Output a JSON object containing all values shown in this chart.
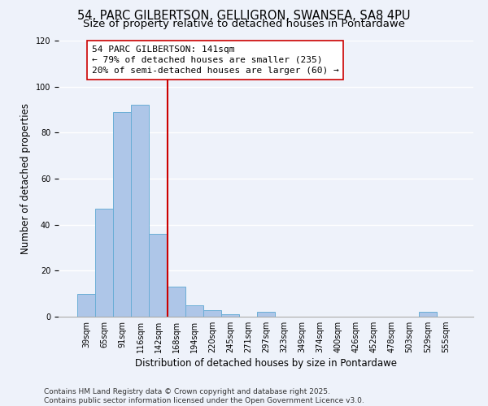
{
  "title": "54, PARC GILBERTSON, GELLIGRON, SWANSEA, SA8 4PU",
  "subtitle": "Size of property relative to detached houses in Pontardawe",
  "bar_labels": [
    "39sqm",
    "65sqm",
    "91sqm",
    "116sqm",
    "142sqm",
    "168sqm",
    "194sqm",
    "220sqm",
    "245sqm",
    "271sqm",
    "297sqm",
    "323sqm",
    "349sqm",
    "374sqm",
    "400sqm",
    "426sqm",
    "452sqm",
    "478sqm",
    "503sqm",
    "529sqm",
    "555sqm"
  ],
  "bar_values": [
    10,
    47,
    89,
    92,
    36,
    13,
    5,
    3,
    1,
    0,
    2,
    0,
    0,
    0,
    0,
    0,
    0,
    0,
    0,
    2,
    0
  ],
  "bar_color": "#aec6e8",
  "bar_edge_color": "#6aaed6",
  "vline_x": 4.5,
  "vline_color": "#cc0000",
  "annotation_lines": [
    "54 PARC GILBERTSON: 141sqm",
    "← 79% of detached houses are smaller (235)",
    "20% of semi-detached houses are larger (60) →"
  ],
  "ylabel": "Number of detached properties",
  "xlabel": "Distribution of detached houses by size in Pontardawe",
  "ylim": [
    0,
    120
  ],
  "yticks": [
    0,
    20,
    40,
    60,
    80,
    100,
    120
  ],
  "footnote1": "Contains HM Land Registry data © Crown copyright and database right 2025.",
  "footnote2": "Contains public sector information licensed under the Open Government Licence v3.0.",
  "background_color": "#eef2fa",
  "grid_color": "#ffffff",
  "title_fontsize": 10.5,
  "subtitle_fontsize": 9.5,
  "axis_label_fontsize": 8.5,
  "tick_fontsize": 7,
  "annotation_fontsize": 8,
  "footnote_fontsize": 6.5
}
